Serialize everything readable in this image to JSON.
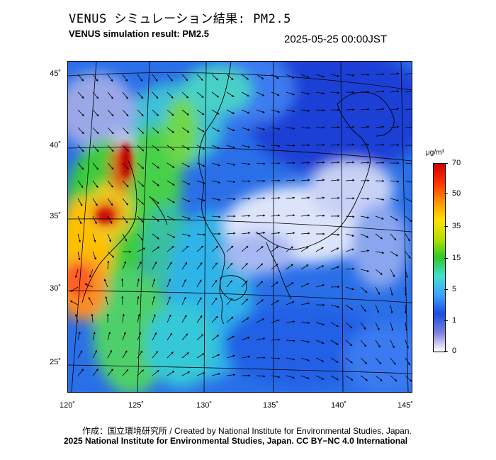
{
  "header": {
    "title_jp": "VENUS シミュレーション結果: PM2.5",
    "title_en": "VENUS simulation result: PM2.5",
    "timestamp": "2025-05-25 00:00JST"
  },
  "map": {
    "lat_labels": [
      "45˚",
      "40˚",
      "35˚",
      "30˚",
      "25˚"
    ],
    "lon_labels": [
      "120˚",
      "125˚",
      "130˚",
      "135˚",
      "140˚",
      "145˚"
    ],
    "lat_range": [
      23,
      46
    ],
    "lon_range": [
      120,
      145
    ]
  },
  "colorbar": {
    "unit": "μg/m³",
    "ticks": [
      "70",
      "50",
      "35",
      "15",
      "5",
      "1",
      "0"
    ],
    "colors": [
      "#ffffff",
      "#8080e0",
      "#1a4fe0",
      "#3fa0ff",
      "#40e0d0",
      "#2ec82e",
      "#b4e000",
      "#ffe000",
      "#ff9000",
      "#ff3000",
      "#d00000"
    ]
  },
  "footer": {
    "credit_jp": "作成：国立環境研究所 / Created by National Institute for Environmental Studies, Japan.",
    "credit_en": "2025 National Institute for Environmental Studies, Japan. CC BY−NC 4.0 International"
  }
}
